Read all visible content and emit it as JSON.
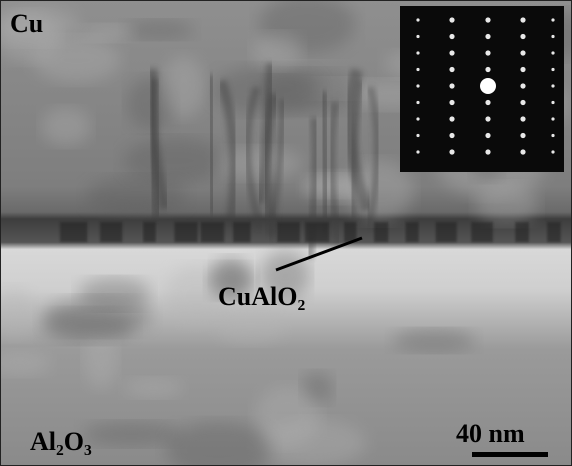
{
  "labels": {
    "top_phase": "Cu",
    "interface": "CuAlO₂",
    "bottom_phase": "Al₂O₃",
    "scale_bar": "40 nm"
  }
}
